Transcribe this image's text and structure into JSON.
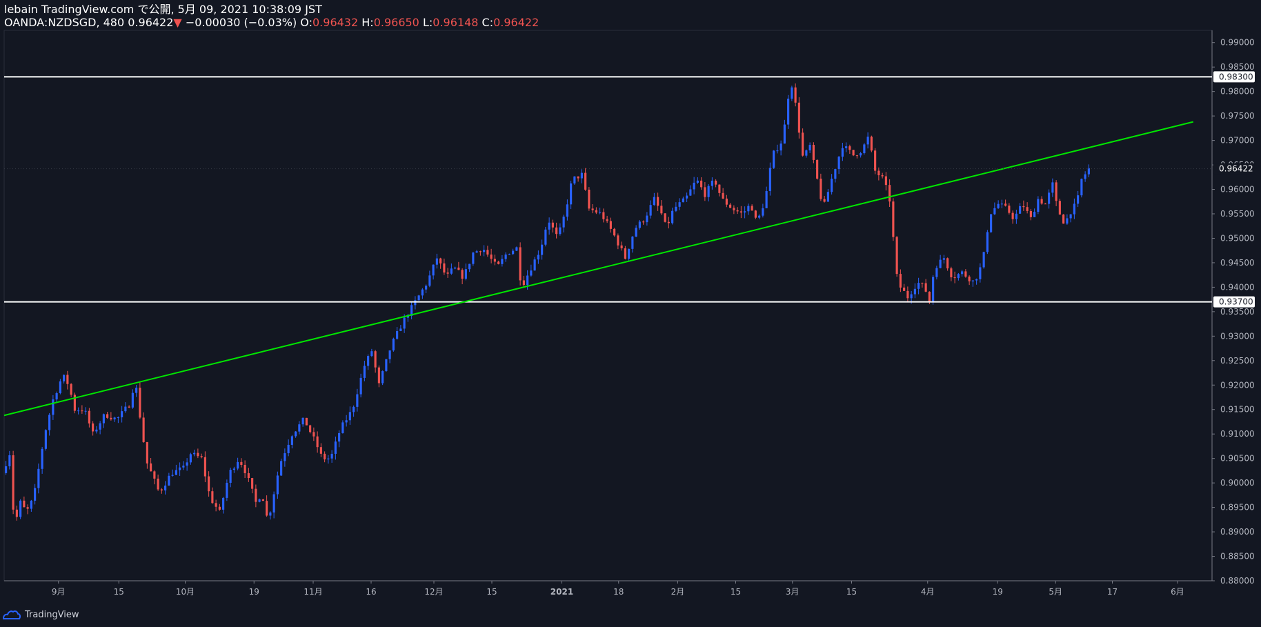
{
  "header": {
    "publisher": "lebain TradingView.com で公開, 5月 09, 2021 10:38:09 JST",
    "symbol": "OANDA:NZDSGD, 480",
    "last": "0.96422",
    "change_arrow": "▼",
    "change": "−0.00030 (−0.03%)",
    "o_label": "O:",
    "o_value": "0.96432",
    "h_label": "H:",
    "h_value": "0.96650",
    "l_label": "L:",
    "l_value": "0.96148",
    "c_label": "C:",
    "c_value": "0.96422"
  },
  "footer": {
    "brand": "TradingView"
  },
  "colors": {
    "background": "#131722",
    "up": "#2962ff",
    "down": "#ef5350",
    "trendline": "#00e600",
    "hline": "#ffffff",
    "axis_text": "#b2b5be"
  },
  "chart_data": {
    "type": "candlestick",
    "ylim": [
      0.88,
      0.9925
    ],
    "y_ticks": [
      "0.99000",
      "0.98500",
      "0.98000",
      "0.97500",
      "0.97000",
      "0.96500",
      "0.96000",
      "0.95500",
      "0.95000",
      "0.94500",
      "0.94000",
      "0.93500",
      "0.93000",
      "0.92500",
      "0.92000",
      "0.91500",
      "0.91000",
      "0.90500",
      "0.90000",
      "0.89500",
      "0.89000",
      "0.88500",
      "0.88000"
    ],
    "x_ticks": [
      {
        "label": "9月",
        "i": 0.045
      },
      {
        "label": "15",
        "i": 0.095
      },
      {
        "label": "10月",
        "i": 0.15
      },
      {
        "label": "19",
        "i": 0.207
      },
      {
        "label": "11月",
        "i": 0.256
      },
      {
        "label": "16",
        "i": 0.304
      },
      {
        "label": "12月",
        "i": 0.356
      },
      {
        "label": "15",
        "i": 0.404
      },
      {
        "label": "2021",
        "i": 0.462
      },
      {
        "label": "18",
        "i": 0.509
      },
      {
        "label": "2月",
        "i": 0.558
      },
      {
        "label": "15",
        "i": 0.606
      },
      {
        "label": "3月",
        "i": 0.653
      },
      {
        "label": "15",
        "i": 0.702
      },
      {
        "label": "4月",
        "i": 0.765
      },
      {
        "label": "19",
        "i": 0.823
      },
      {
        "label": "5月",
        "i": 0.871
      },
      {
        "label": "17",
        "i": 0.918
      },
      {
        "label": "6月",
        "i": 0.972
      }
    ],
    "horizontal_lines": [
      {
        "value": 0.983,
        "label": "0.98300"
      },
      {
        "value": 0.937,
        "label": "0.93700"
      }
    ],
    "last_price": {
      "value": 0.96422,
      "label": "0.96422"
    },
    "trendline": {
      "from": {
        "i": 0.0,
        "value": 0.9138
      },
      "to": {
        "i": 0.985,
        "value": 0.9738
      }
    },
    "price_path": [
      [
        0,
        0.902
      ],
      [
        0.006,
        0.906
      ],
      [
        0.01,
        0.891
      ],
      [
        0.015,
        0.896
      ],
      [
        0.02,
        0.894
      ],
      [
        0.026,
        0.897
      ],
      [
        0.035,
        0.91
      ],
      [
        0.042,
        0.917
      ],
      [
        0.05,
        0.922
      ],
      [
        0.055,
        0.92
      ],
      [
        0.06,
        0.915
      ],
      [
        0.068,
        0.915
      ],
      [
        0.075,
        0.91
      ],
      [
        0.085,
        0.914
      ],
      [
        0.095,
        0.913
      ],
      [
        0.105,
        0.916
      ],
      [
        0.11,
        0.921
      ],
      [
        0.116,
        0.91
      ],
      [
        0.12,
        0.904
      ],
      [
        0.13,
        0.898
      ],
      [
        0.14,
        0.902
      ],
      [
        0.15,
        0.903
      ],
      [
        0.156,
        0.906
      ],
      [
        0.165,
        0.905
      ],
      [
        0.172,
        0.897
      ],
      [
        0.18,
        0.894
      ],
      [
        0.188,
        0.902
      ],
      [
        0.196,
        0.905
      ],
      [
        0.202,
        0.902
      ],
      [
        0.21,
        0.896
      ],
      [
        0.215,
        0.898
      ],
      [
        0.22,
        0.892
      ],
      [
        0.23,
        0.904
      ],
      [
        0.24,
        0.91
      ],
      [
        0.25,
        0.913
      ],
      [
        0.26,
        0.908
      ],
      [
        0.265,
        0.905
      ],
      [
        0.272,
        0.905
      ],
      [
        0.28,
        0.911
      ],
      [
        0.29,
        0.915
      ],
      [
        0.3,
        0.924
      ],
      [
        0.306,
        0.927
      ],
      [
        0.312,
        0.92
      ],
      [
        0.322,
        0.928
      ],
      [
        0.332,
        0.933
      ],
      [
        0.342,
        0.937
      ],
      [
        0.352,
        0.941
      ],
      [
        0.36,
        0.946
      ],
      [
        0.368,
        0.942
      ],
      [
        0.374,
        0.944
      ],
      [
        0.382,
        0.942
      ],
      [
        0.39,
        0.947
      ],
      [
        0.398,
        0.948
      ],
      [
        0.41,
        0.944
      ],
      [
        0.418,
        0.947
      ],
      [
        0.426,
        0.948
      ],
      [
        0.43,
        0.94
      ],
      [
        0.436,
        0.943
      ],
      [
        0.446,
        0.948
      ],
      [
        0.452,
        0.954
      ],
      [
        0.46,
        0.95
      ],
      [
        0.466,
        0.955
      ],
      [
        0.472,
        0.962
      ],
      [
        0.48,
        0.963
      ],
      [
        0.486,
        0.956
      ],
      [
        0.496,
        0.955
      ],
      [
        0.506,
        0.951
      ],
      [
        0.516,
        0.946
      ],
      [
        0.524,
        0.952
      ],
      [
        0.532,
        0.954
      ],
      [
        0.54,
        0.958
      ],
      [
        0.546,
        0.955
      ],
      [
        0.55,
        0.952
      ],
      [
        0.556,
        0.956
      ],
      [
        0.566,
        0.958
      ],
      [
        0.575,
        0.962
      ],
      [
        0.582,
        0.959
      ],
      [
        0.59,
        0.962
      ],
      [
        0.596,
        0.958
      ],
      [
        0.605,
        0.956
      ],
      [
        0.613,
        0.955
      ],
      [
        0.62,
        0.957
      ],
      [
        0.625,
        0.953
      ],
      [
        0.632,
        0.958
      ],
      [
        0.638,
        0.967
      ],
      [
        0.646,
        0.97
      ],
      [
        0.65,
        0.976
      ],
      [
        0.652,
        0.982
      ],
      [
        0.655,
        0.981
      ],
      [
        0.66,
        0.972
      ],
      [
        0.664,
        0.965
      ],
      [
        0.668,
        0.97
      ],
      [
        0.675,
        0.962
      ],
      [
        0.68,
        0.956
      ],
      [
        0.688,
        0.963
      ],
      [
        0.696,
        0.969
      ],
      [
        0.705,
        0.967
      ],
      [
        0.712,
        0.968
      ],
      [
        0.718,
        0.971
      ],
      [
        0.722,
        0.964
      ],
      [
        0.73,
        0.962
      ],
      [
        0.736,
        0.957
      ],
      [
        0.74,
        0.943
      ],
      [
        0.744,
        0.94
      ],
      [
        0.75,
        0.938
      ],
      [
        0.758,
        0.941
      ],
      [
        0.764,
        0.94
      ],
      [
        0.768,
        0.937
      ],
      [
        0.772,
        0.944
      ],
      [
        0.78,
        0.946
      ],
      [
        0.787,
        0.942
      ],
      [
        0.795,
        0.943
      ],
      [
        0.805,
        0.941
      ],
      [
        0.812,
        0.945
      ],
      [
        0.818,
        0.955
      ],
      [
        0.825,
        0.957
      ],
      [
        0.832,
        0.956
      ],
      [
        0.838,
        0.954
      ],
      [
        0.845,
        0.957
      ],
      [
        0.852,
        0.954
      ],
      [
        0.858,
        0.958
      ],
      [
        0.864,
        0.957
      ],
      [
        0.87,
        0.961
      ],
      [
        0.874,
        0.956
      ],
      [
        0.88,
        0.953
      ],
      [
        0.886,
        0.956
      ],
      [
        0.89,
        0.957
      ],
      [
        0.894,
        0.962
      ],
      [
        0.9,
        0.96422
      ]
    ]
  }
}
